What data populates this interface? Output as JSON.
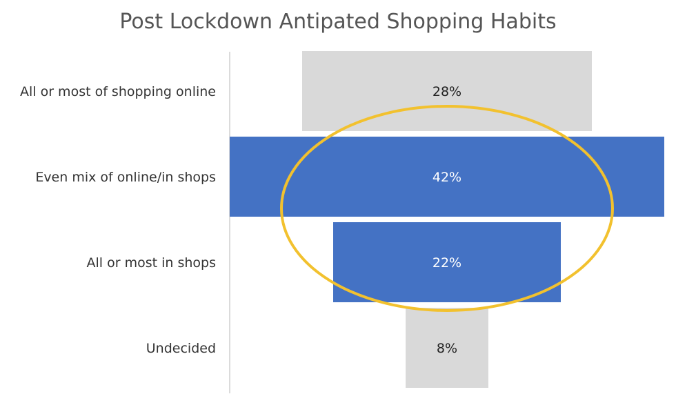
{
  "chart_data": {
    "type": "bar",
    "subtype": "funnel",
    "title": "Post Lockdown Antipated Shopping Habits",
    "categories": [
      "All or most of shopping online",
      "Even mix of online/in shops",
      "All or most in shops",
      "Undecided"
    ],
    "values": [
      28,
      42,
      22,
      8
    ],
    "data_labels": [
      "28%",
      "42%",
      "22%",
      "8%"
    ],
    "bar_colors": [
      "#d9d9d9",
      "#4472c4",
      "#4472c4",
      "#d9d9d9"
    ],
    "label_colors": [
      "#222222",
      "#ffffff",
      "#ffffff",
      "#222222"
    ],
    "highlight_color": "#f2c12e",
    "value_max": 42,
    "grid": false,
    "legend": "none"
  }
}
